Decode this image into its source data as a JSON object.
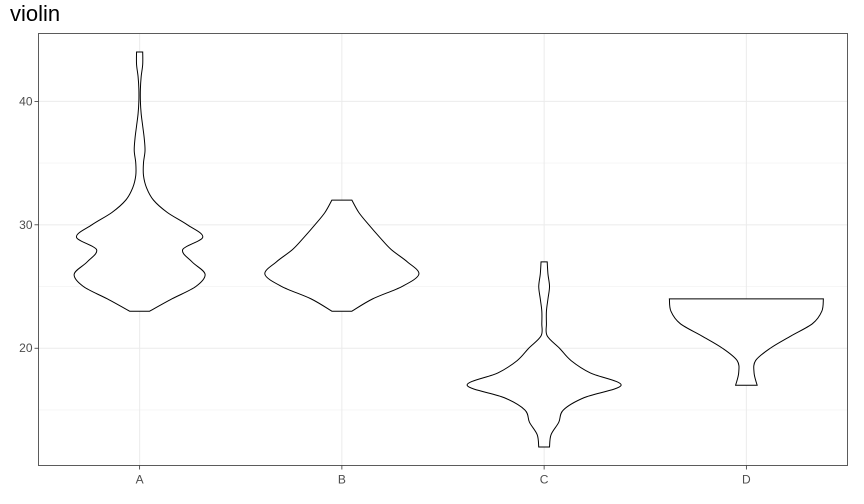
{
  "chart_data": {
    "type": "violin",
    "title": "violin",
    "xlabel": "",
    "ylabel": "",
    "categories": [
      "A",
      "B",
      "C",
      "D"
    ],
    "ylim": [
      10.5,
      45.5
    ],
    "y_ticks": [
      20,
      30,
      40
    ],
    "y_minor_ticks": [
      15,
      25,
      35
    ],
    "grid": true,
    "violins": [
      {
        "category": "A",
        "range": [
          23,
          44
        ],
        "profile": [
          [
            23,
            0.13
          ],
          [
            24,
            0.42
          ],
          [
            25,
            0.73
          ],
          [
            26,
            0.85
          ],
          [
            27,
            0.68
          ],
          [
            28,
            0.56
          ],
          [
            29,
            0.82
          ],
          [
            30,
            0.62
          ],
          [
            31,
            0.36
          ],
          [
            32,
            0.18
          ],
          [
            33,
            0.09
          ],
          [
            34,
            0.05
          ],
          [
            35,
            0.05
          ],
          [
            36,
            0.07
          ],
          [
            37,
            0.06
          ],
          [
            38,
            0.04
          ],
          [
            39,
            0.02
          ],
          [
            40,
            0.01
          ],
          [
            41,
            0.01
          ],
          [
            42,
            0.02
          ],
          [
            43,
            0.04
          ],
          [
            44,
            0.04
          ]
        ]
      },
      {
        "category": "B",
        "range": [
          23,
          32
        ],
        "profile": [
          [
            23,
            0.13
          ],
          [
            24,
            0.4
          ],
          [
            25,
            0.78
          ],
          [
            26,
            1.0
          ],
          [
            27,
            0.85
          ],
          [
            28,
            0.64
          ],
          [
            29,
            0.49
          ],
          [
            30,
            0.35
          ],
          [
            31,
            0.22
          ],
          [
            32,
            0.13
          ]
        ]
      },
      {
        "category": "C",
        "range": [
          12,
          27
        ],
        "profile": [
          [
            12,
            0.07
          ],
          [
            13,
            0.09
          ],
          [
            14,
            0.19
          ],
          [
            15,
            0.25
          ],
          [
            16,
            0.52
          ],
          [
            17,
            1.0
          ],
          [
            18,
            0.6
          ],
          [
            19,
            0.35
          ],
          [
            20,
            0.2
          ],
          [
            21,
            0.04
          ],
          [
            22,
            0.03
          ],
          [
            23,
            0.03
          ],
          [
            24,
            0.05
          ],
          [
            25,
            0.07
          ],
          [
            26,
            0.05
          ],
          [
            27,
            0.04
          ]
        ]
      },
      {
        "category": "D",
        "range": [
          17,
          24
        ],
        "profile": [
          [
            17,
            0.14
          ],
          [
            18,
            0.1
          ],
          [
            19,
            0.12
          ],
          [
            20,
            0.31
          ],
          [
            21,
            0.58
          ],
          [
            22,
            0.86
          ],
          [
            23,
            0.98
          ],
          [
            24,
            1.0
          ]
        ]
      }
    ]
  }
}
